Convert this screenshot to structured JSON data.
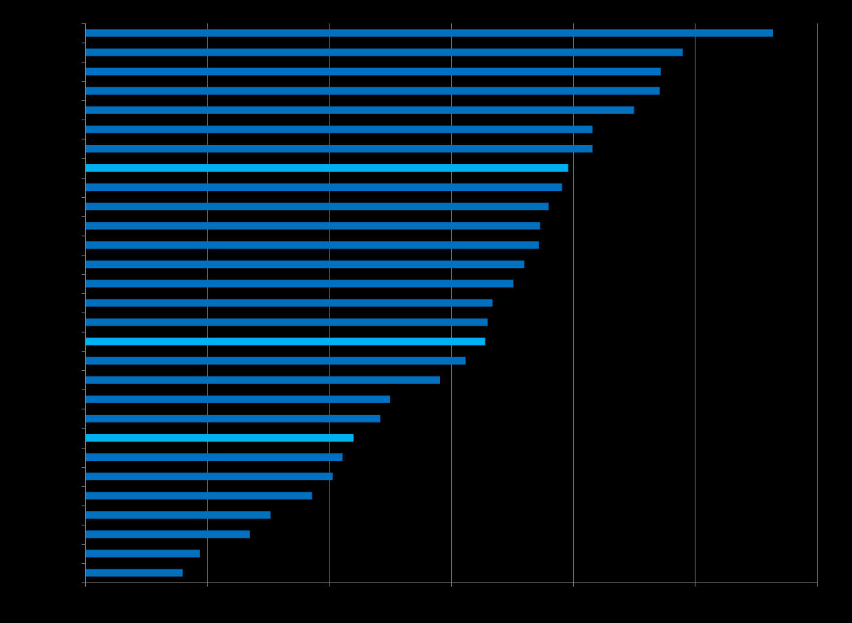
{
  "chart_data": {
    "type": "bar",
    "orientation": "horizontal",
    "title": "",
    "xlabel": "",
    "ylabel": "",
    "xlim": [
      0,
      6
    ],
    "grid": "vertical",
    "values": [
      5.64,
      4.9,
      4.72,
      4.71,
      4.5,
      4.16,
      4.16,
      3.96,
      3.91,
      3.8,
      3.73,
      3.72,
      3.6,
      3.51,
      3.34,
      3.3,
      3.28,
      3.12,
      2.91,
      2.5,
      2.42,
      2.2,
      2.11,
      2.03,
      1.86,
      1.52,
      1.35,
      0.94,
      0.8
    ],
    "highlighted": [
      false,
      false,
      false,
      false,
      false,
      false,
      false,
      true,
      false,
      false,
      false,
      false,
      false,
      false,
      false,
      false,
      true,
      false,
      false,
      false,
      false,
      true,
      false,
      false,
      false,
      false,
      false,
      false,
      false
    ],
    "colors": {
      "background": "#000000",
      "bar": "#0070C0",
      "highlight": "#00B0F0",
      "grid": "#7F7F7F",
      "axis": "#7F7F7F"
    }
  }
}
